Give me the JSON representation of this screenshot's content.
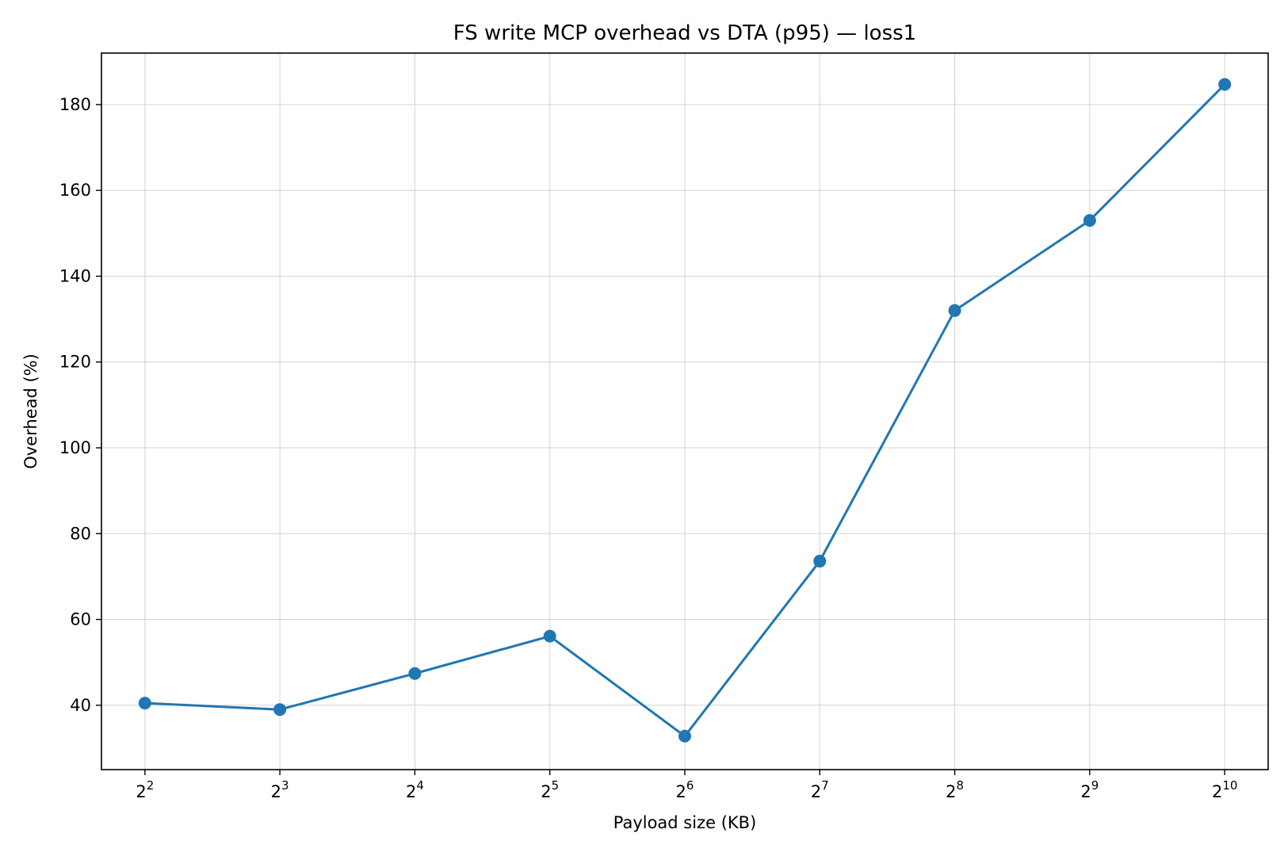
{
  "chart_data": {
    "type": "line",
    "title": "FS write MCP overhead vs DTA (p95) — loss1",
    "xlabel": "Payload size (KB)",
    "ylabel": "Overhead (%)",
    "x_scale": "log2",
    "x": [
      4,
      8,
      16,
      32,
      64,
      128,
      256,
      512,
      1024
    ],
    "x_tick_labels": [
      {
        "base": "2",
        "exp": "2"
      },
      {
        "base": "2",
        "exp": "3"
      },
      {
        "base": "2",
        "exp": "4"
      },
      {
        "base": "2",
        "exp": "5"
      },
      {
        "base": "2",
        "exp": "6"
      },
      {
        "base": "2",
        "exp": "7"
      },
      {
        "base": "2",
        "exp": "8"
      },
      {
        "base": "2",
        "exp": "9"
      },
      {
        "base": "2",
        "exp": "10"
      }
    ],
    "xlim": [
      3.2,
      1280
    ],
    "y_ticks": [
      40,
      60,
      80,
      100,
      120,
      140,
      160,
      180
    ],
    "ylim": [
      25,
      192
    ],
    "grid": true,
    "series": [
      {
        "values": [
          40.5,
          39.0,
          47.4,
          56.1,
          32.8,
          73.6,
          132.0,
          153.0,
          184.7
        ],
        "color": "#1f77b4",
        "marker": "circle"
      }
    ]
  }
}
